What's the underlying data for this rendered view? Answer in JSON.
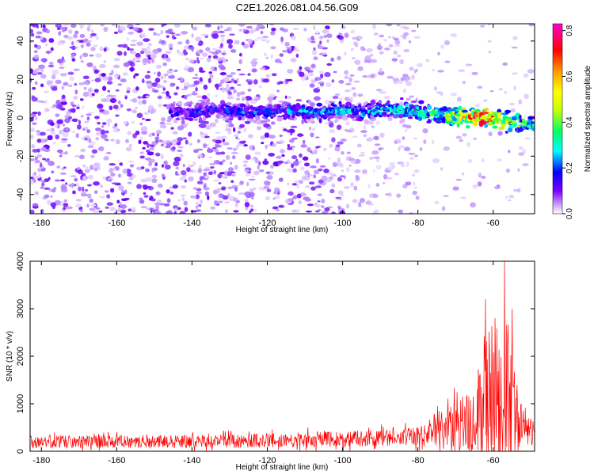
{
  "title": "C2E1.2026.081.04.56.G09",
  "chart_data": [
    {
      "type": "heatmap",
      "title": "",
      "xlabel": "Height of straight line (km)",
      "ylabel": "Frequency (Hz)",
      "xlim": [
        -183,
        -49
      ],
      "ylim": [
        -50,
        49
      ],
      "xticks": [
        -180,
        -160,
        -140,
        -120,
        -100,
        -80,
        -60
      ],
      "yticks": [
        -40,
        -20,
        0,
        20,
        40
      ],
      "colorbar": {
        "label": "Normalized spectral amplitude",
        "range": [
          0.0,
          0.83
        ],
        "ticks": [
          0.0,
          0.2,
          0.4,
          0.6,
          0.8
        ],
        "tick_labels": [
          "0.0",
          "0.2",
          "0.4",
          "0.6",
          "0.8"
        ],
        "colors": [
          "#ffffff",
          "#c084fc",
          "#7c00ff",
          "#0000ff",
          "#00ffff",
          "#00ff66",
          "#ccff00",
          "#ffff00",
          "#ff9900",
          "#ff0000",
          "#ff00cc"
        ]
      },
      "signal_track": [
        {
          "x": -146,
          "y": 3
        },
        {
          "x": -140,
          "y": 2
        },
        {
          "x": -135,
          "y": 4
        },
        {
          "x": -130,
          "y": 4
        },
        {
          "x": -125,
          "y": 3
        },
        {
          "x": -120,
          "y": 3
        },
        {
          "x": -115,
          "y": 4
        },
        {
          "x": -110,
          "y": 3
        },
        {
          "x": -105,
          "y": 3
        },
        {
          "x": -100,
          "y": 4
        },
        {
          "x": -95,
          "y": 3
        },
        {
          "x": -90,
          "y": 4
        },
        {
          "x": -85,
          "y": 4
        },
        {
          "x": -80,
          "y": 3
        },
        {
          "x": -75,
          "y": 2
        },
        {
          "x": -70,
          "y": 1
        },
        {
          "x": -65,
          "y": 0
        },
        {
          "x": -60,
          "y": -1
        },
        {
          "x": -55,
          "y": -2
        },
        {
          "x": -50,
          "y": -4
        }
      ],
      "signal_amplitude": [
        {
          "x": -146,
          "v": 0.25
        },
        {
          "x": -120,
          "v": 0.3
        },
        {
          "x": -100,
          "v": 0.35
        },
        {
          "x": -85,
          "v": 0.38
        },
        {
          "x": -75,
          "v": 0.45
        },
        {
          "x": -68,
          "v": 0.6
        },
        {
          "x": -62,
          "v": 0.82
        },
        {
          "x": -58,
          "v": 0.6
        },
        {
          "x": -50,
          "v": 0.45
        }
      ],
      "noise_edge_x": -80
    },
    {
      "type": "line",
      "title": "",
      "xlabel": "Height of straight line (km)",
      "ylabel": "SNR (10 * v/v)",
      "xlim": [
        -183,
        -49
      ],
      "ylim": [
        0,
        4000
      ],
      "xticks": [
        -180,
        -160,
        -140,
        -120,
        -100,
        -80,
        -60
      ],
      "yticks": [
        0,
        1000,
        2000,
        3000,
        4000
      ],
      "series": [
        {
          "color": "#ff0000",
          "envelope": [
            {
              "x": -183,
              "base": 200,
              "amp": 220
            },
            {
              "x": -150,
              "base": 200,
              "amp": 220
            },
            {
              "x": -130,
              "base": 210,
              "amp": 230
            },
            {
              "x": -115,
              "base": 230,
              "amp": 260
            },
            {
              "x": -100,
              "base": 250,
              "amp": 280
            },
            {
              "x": -90,
              "base": 280,
              "amp": 300
            },
            {
              "x": -82,
              "base": 300,
              "amp": 320
            },
            {
              "x": -78,
              "base": 400,
              "amp": 500
            },
            {
              "x": -72,
              "base": 500,
              "amp": 800
            },
            {
              "x": -67,
              "base": 600,
              "amp": 1100
            },
            {
              "x": -63,
              "base": 800,
              "amp": 1800
            },
            {
              "x": -61,
              "base": 1000,
              "amp": 2700
            },
            {
              "x": -59,
              "base": 1100,
              "amp": 2600
            },
            {
              "x": -57,
              "base": 1200,
              "amp": 2800
            },
            {
              "x": -55,
              "base": 900,
              "amp": 1800
            },
            {
              "x": -53,
              "base": 500,
              "amp": 900
            },
            {
              "x": -49,
              "base": 350,
              "amp": 400
            }
          ],
          "peaks": [
            {
              "x": -62,
              "y": 3200
            },
            {
              "x": -59.5,
              "y": 2800
            },
            {
              "x": -57,
              "y": 4000
            },
            {
              "x": -55,
              "y": 3000
            }
          ]
        }
      ]
    }
  ]
}
